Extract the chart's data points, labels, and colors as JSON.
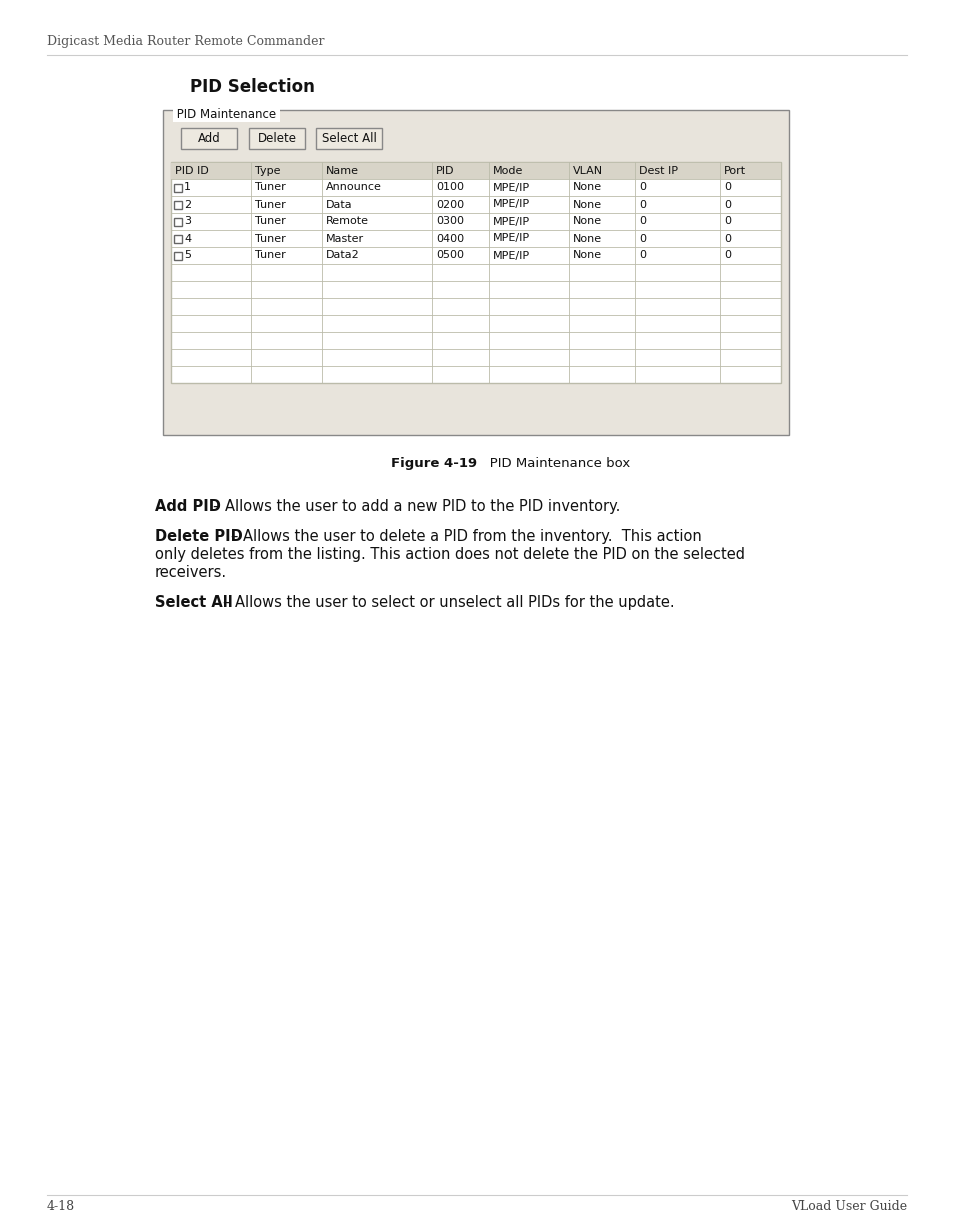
{
  "page_header": "Digicast Media Router Remote Commander",
  "section_title": "PID Selection",
  "figure_caption_bold": "Figure 4-19",
  "figure_caption_normal": "   PID Maintenance box",
  "panel_title": "PID Maintenance",
  "buttons": [
    "Add",
    "Delete",
    "Select All"
  ],
  "table_headers": [
    "PID ID",
    "Type",
    "Name",
    "PID",
    "Mode",
    "VLAN",
    "Dest IP",
    "Port"
  ],
  "table_data": [
    [
      "1",
      "Tuner",
      "Announce",
      "0100",
      "MPE/IP",
      "None",
      "0",
      "0"
    ],
    [
      "2",
      "Tuner",
      "Data",
      "0200",
      "MPE/IP",
      "None",
      "0",
      "0"
    ],
    [
      "3",
      "Tuner",
      "Remote",
      "0300",
      "MPE/IP",
      "None",
      "0",
      "0"
    ],
    [
      "4",
      "Tuner",
      "Master",
      "0400",
      "MPE/IP",
      "None",
      "0",
      "0"
    ],
    [
      "5",
      "Tuner",
      "Data2",
      "0500",
      "MPE/IP",
      "None",
      "0",
      "0"
    ]
  ],
  "empty_rows": 7,
  "footer_left": "4-18",
  "footer_right": "VLoad User Guide",
  "bg_color": "#ffffff",
  "panel_bg": "#e8e4dc",
  "panel_border": "#888888",
  "table_border": "#bbbbaa",
  "table_header_bg": "#d8d4c8",
  "button_bg": "#ede9e0",
  "button_border": "#888888",
  "header_text_color": "#555555",
  "body_text_color": "#111111",
  "footer_text_color": "#444444"
}
